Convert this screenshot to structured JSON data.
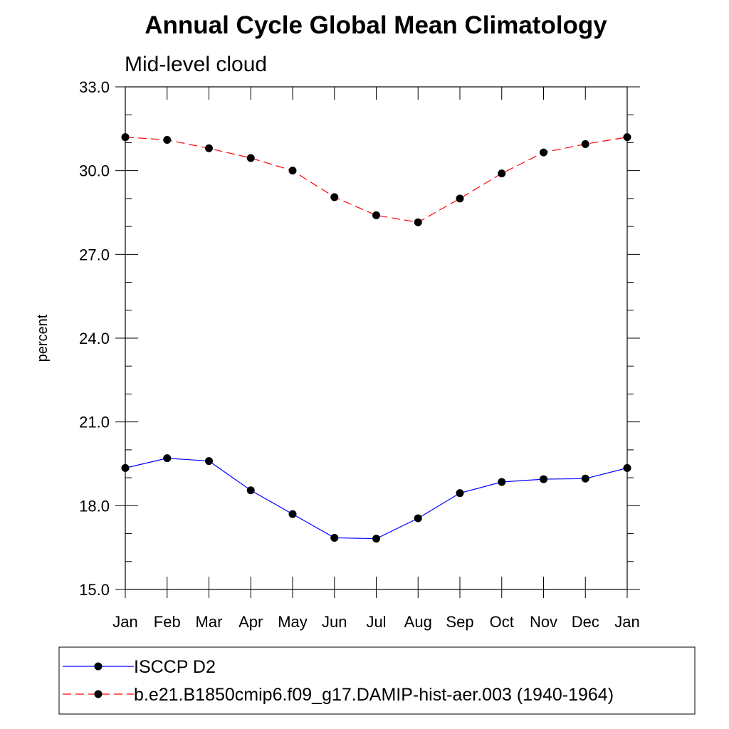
{
  "chart_data": {
    "type": "line",
    "title": "Annual Cycle Global Mean Climatology",
    "subtitle": "Mid-level cloud",
    "ylabel": "percent",
    "xlabel": "",
    "categories": [
      "Jan",
      "Feb",
      "Mar",
      "Apr",
      "May",
      "Jun",
      "Jul",
      "Aug",
      "Sep",
      "Oct",
      "Nov",
      "Dec",
      "Jan"
    ],
    "ylim": [
      15.0,
      33.0
    ],
    "yticks": [
      "15.0",
      "18.0",
      "21.0",
      "24.0",
      "27.0",
      "30.0",
      "33.0"
    ],
    "ytick_values": [
      15,
      18,
      21,
      24,
      27,
      30,
      33
    ],
    "grid": false,
    "legend_position": "bottom",
    "series": [
      {
        "name": "ISCCP D2",
        "color": "#0000ff",
        "dash": "solid",
        "marker": "filled-circle",
        "values": [
          19.35,
          19.7,
          19.6,
          18.55,
          17.7,
          16.85,
          16.82,
          17.55,
          18.45,
          18.85,
          18.95,
          18.97,
          19.35
        ]
      },
      {
        "name": "b.e21.B1850cmip6.f09_g17.DAMIP-hist-aer.003 (1940-1964)",
        "color": "#ff0000",
        "dash": "dashed",
        "marker": "filled-circle",
        "values": [
          31.2,
          31.1,
          30.8,
          30.45,
          30.0,
          29.05,
          28.4,
          28.15,
          29.0,
          29.9,
          30.65,
          30.95,
          31.2
        ]
      }
    ]
  }
}
